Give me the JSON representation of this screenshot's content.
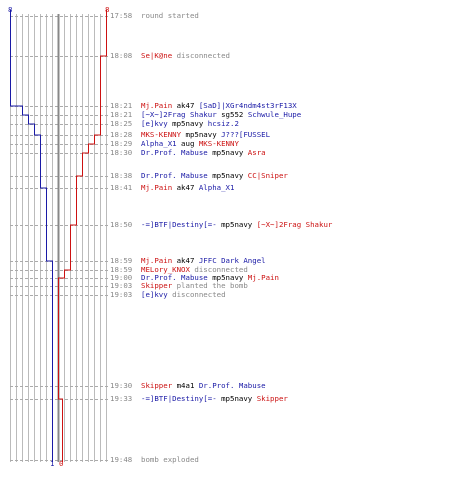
{
  "colors": {
    "team_blue": "#1a1aa6",
    "team_red": "#cc1111",
    "text_gray": "#888888",
    "dark": "#000000"
  },
  "counts": {
    "blue_start": "8",
    "red_start": "8",
    "blue_end": "1",
    "red_end": "0"
  },
  "events": [
    {
      "time": "17:58",
      "parts": [
        {
          "t": "round started",
          "c": "text"
        }
      ]
    },
    {
      "time": "18:08",
      "parts": [
        {
          "t": "Se|K@ne",
          "c": "red"
        },
        {
          "t": " disconnected",
          "c": "text"
        }
      ]
    },
    {
      "time": "18:21",
      "parts": [
        {
          "t": "Mj.Pain",
          "c": "red"
        },
        {
          "t": " ak47 ",
          "c": "dark"
        },
        {
          "t": "[SaD]|XGr4ndm4st3rF13X",
          "c": "blue"
        }
      ]
    },
    {
      "time": "18:21",
      "parts": [
        {
          "t": "[~X~]2Frag Shakur",
          "c": "blue"
        },
        {
          "t": " sg552 ",
          "c": "dark"
        },
        {
          "t": "Schwule_Hupe",
          "c": "blue"
        }
      ]
    },
    {
      "time": "18:25",
      "parts": [
        {
          "t": "[e]kvy",
          "c": "blue"
        },
        {
          "t": " mp5navy ",
          "c": "dark"
        },
        {
          "t": "hcsiz.2",
          "c": "blue"
        }
      ]
    },
    {
      "time": "18:28",
      "parts": [
        {
          "t": "MKS-KENNY",
          "c": "red"
        },
        {
          "t": " mp5navy ",
          "c": "dark"
        },
        {
          "t": "J???[FUSSEL",
          "c": "blue"
        }
      ]
    },
    {
      "time": "18:29",
      "parts": [
        {
          "t": "Alpha_X1",
          "c": "blue"
        },
        {
          "t": " aug ",
          "c": "dark"
        },
        {
          "t": "MKS-KENNY",
          "c": "red"
        }
      ]
    },
    {
      "time": "18:30",
      "parts": [
        {
          "t": "Dr.Prof. Mabuse",
          "c": "blue"
        },
        {
          "t": " mp5navy ",
          "c": "dark"
        },
        {
          "t": "Asra",
          "c": "red"
        }
      ]
    },
    {
      "time": "18:38",
      "parts": [
        {
          "t": "Dr.Prof. Mabuse",
          "c": "blue"
        },
        {
          "t": " mp5navy ",
          "c": "dark"
        },
        {
          "t": "CC|Sniper",
          "c": "red"
        }
      ]
    },
    {
      "time": "18:41",
      "parts": [
        {
          "t": "Mj.Pain",
          "c": "red"
        },
        {
          "t": " ak47 ",
          "c": "dark"
        },
        {
          "t": "Alpha_X1",
          "c": "blue"
        }
      ]
    },
    {
      "time": "18:50",
      "parts": [
        {
          "t": "-=]BTF|Destiny[=-",
          "c": "blue"
        },
        {
          "t": " mp5navy ",
          "c": "dark"
        },
        {
          "t": "[~X~]2Frag Shakur",
          "c": "red"
        }
      ]
    },
    {
      "time": "18:59",
      "parts": [
        {
          "t": "Mj.Pain",
          "c": "red"
        },
        {
          "t": " ak47 ",
          "c": "dark"
        },
        {
          "t": "JFFC Dark Angel",
          "c": "blue"
        }
      ]
    },
    {
      "time": "18:59",
      "parts": [
        {
          "t": "MELory_KNOX",
          "c": "red"
        },
        {
          "t": " disconnected",
          "c": "text"
        }
      ]
    },
    {
      "time": "19:00",
      "parts": [
        {
          "t": "Dr.Prof. Mabuse",
          "c": "blue"
        },
        {
          "t": " mp5navy ",
          "c": "dark"
        },
        {
          "t": "Mj.Pain",
          "c": "red"
        }
      ]
    },
    {
      "time": "19:03",
      "parts": [
        {
          "t": "Skipper",
          "c": "red"
        },
        {
          "t": " planted the bomb",
          "c": "text"
        }
      ]
    },
    {
      "time": "19:03",
      "parts": [
        {
          "t": "[e]kvy",
          "c": "blue"
        },
        {
          "t": " disconnected",
          "c": "text"
        }
      ]
    },
    {
      "time": "19:30",
      "parts": [
        {
          "t": "Skipper",
          "c": "red"
        },
        {
          "t": " m4a1 ",
          "c": "dark"
        },
        {
          "t": "Dr.Prof. Mabuse",
          "c": "blue"
        }
      ]
    },
    {
      "time": "19:33",
      "parts": [
        {
          "t": "-=]BTF|Destiny[=-",
          "c": "blue"
        },
        {
          "t": " mp5navy ",
          "c": "dark"
        },
        {
          "t": "Skipper",
          "c": "red"
        }
      ]
    },
    {
      "time": "19:48",
      "parts": [
        {
          "t": "bomb exploded",
          "c": "text"
        }
      ]
    }
  ]
}
